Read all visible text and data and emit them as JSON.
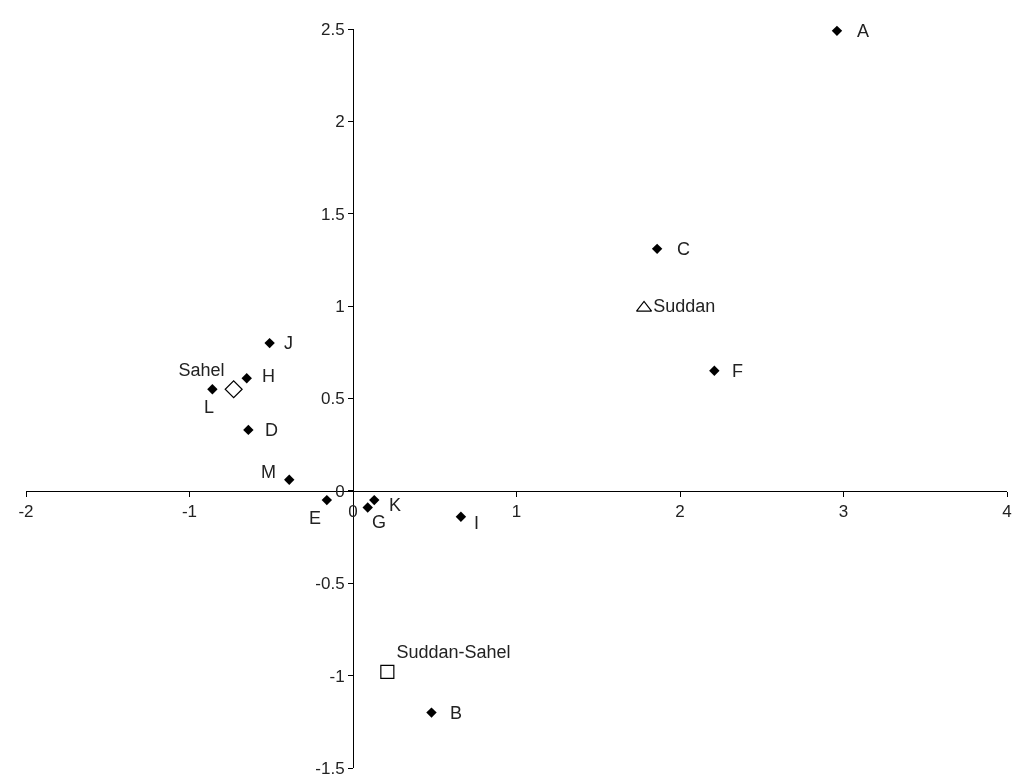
{
  "chart_data": {
    "type": "scatter",
    "xlim": [
      -2,
      4
    ],
    "ylim": [
      -1.5,
      2.5
    ],
    "xticks": [
      -2,
      -1,
      0,
      1,
      2,
      3,
      4
    ],
    "yticks": [
      -1.5,
      -1,
      -0.5,
      0,
      0.5,
      1,
      1.5,
      2,
      2.5
    ],
    "legend": false,
    "series": [
      {
        "color": "#000000",
        "marker": "diamond",
        "x": [
          2.96,
          0.48,
          1.86,
          -0.64,
          -0.16,
          2.21,
          0.09,
          -0.65,
          0.66,
          -0.51,
          0.13,
          -0.86,
          -0.39
        ],
        "values": [
          2.49,
          -1.2,
          1.31,
          0.33,
          -0.05,
          0.65,
          -0.09,
          0.61,
          -0.14,
          0.8,
          -0.05,
          0.55,
          0.06
        ]
      },
      {
        "name": "Sahel",
        "color": "#000000",
        "marker": "diamond",
        "x": [
          -0.73
        ],
        "values": [
          0.55
        ]
      },
      {
        "name": "Suddan",
        "color": "#000000",
        "marker": "triangle",
        "x": [
          1.78
        ],
        "values": [
          0.99
        ]
      },
      {
        "name": "Suddan-Sahel",
        "color": "#000000",
        "marker": "square",
        "x": [
          0.21
        ],
        "values": [
          -0.98
        ]
      }
    ],
    "annotations": [
      {
        "text": "A",
        "x": 2.96,
        "y": 2.49
      },
      {
        "text": "B",
        "x": 0.48,
        "y": -1.2
      },
      {
        "text": "C",
        "x": 1.86,
        "y": 1.31
      },
      {
        "text": "D",
        "x": -0.64,
        "y": 0.33
      },
      {
        "text": "E",
        "x": -0.16,
        "y": -0.05
      },
      {
        "text": "F",
        "x": 2.21,
        "y": 0.65
      },
      {
        "text": "G",
        "x": 0.09,
        "y": -0.09
      },
      {
        "text": "H",
        "x": -0.65,
        "y": 0.61
      },
      {
        "text": "I",
        "x": 0.66,
        "y": -0.14
      },
      {
        "text": "J",
        "x": -0.51,
        "y": 0.8
      },
      {
        "text": "K",
        "x": 0.13,
        "y": -0.05
      },
      {
        "text": "L",
        "x": -0.86,
        "y": 0.55
      },
      {
        "text": "M",
        "x": -0.39,
        "y": 0.06
      }
    ]
  }
}
